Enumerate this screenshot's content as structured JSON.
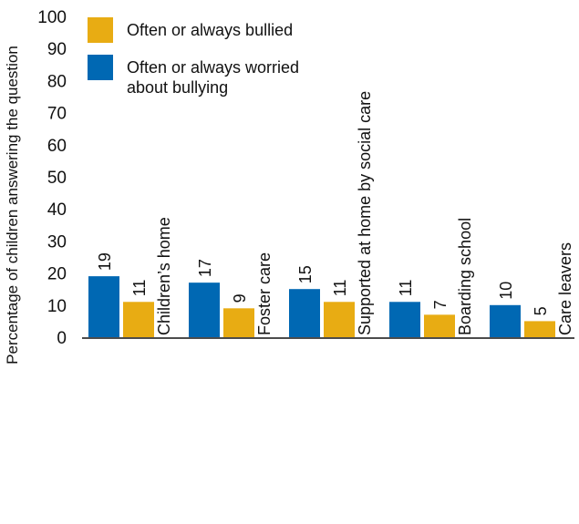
{
  "chart_data": {
    "type": "bar",
    "title": "",
    "xlabel": "",
    "ylabel": "Percentage of children answering the question",
    "ylim": [
      0,
      100
    ],
    "yticks": [
      0,
      10,
      20,
      30,
      40,
      50,
      60,
      70,
      80,
      90,
      100
    ],
    "grid": false,
    "legend_position": "top-left",
    "categories": [
      "Children’s home",
      "Foster care",
      "Supported at home by social care",
      "Boarding school",
      "Care leavers"
    ],
    "series": [
      {
        "name": "Often or always worried about bullying",
        "legend_lines": [
          "Often or always worried",
          "about bullying"
        ],
        "color": "#0068b3",
        "values": [
          19,
          17,
          15,
          11,
          10
        ]
      },
      {
        "name": "Often or always bullied",
        "legend_lines": [
          "Often or always bullied"
        ],
        "color": "#e8ac13",
        "values": [
          11,
          9,
          11,
          7,
          5
        ]
      }
    ]
  }
}
